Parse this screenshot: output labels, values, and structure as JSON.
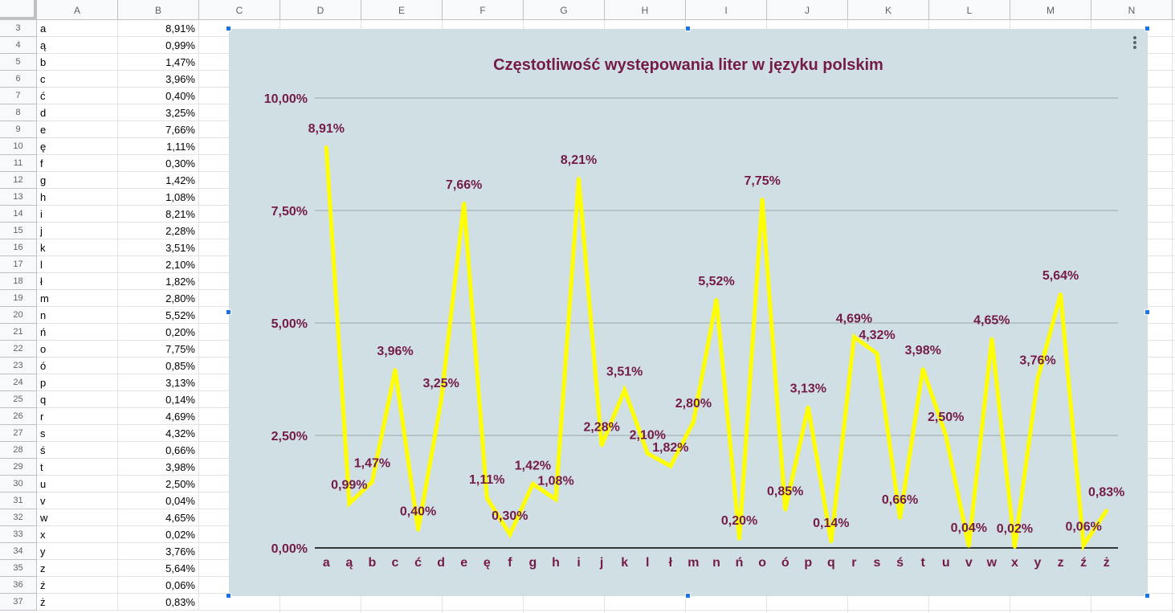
{
  "columns": [
    "A",
    "B",
    "C",
    "D",
    "E",
    "F",
    "G",
    "H",
    "I",
    "J",
    "K",
    "L",
    "M",
    "N"
  ],
  "rows": [
    {
      "num": "3",
      "letter": "a",
      "value": "8,91%"
    },
    {
      "num": "4",
      "letter": "ą",
      "value": "0,99%"
    },
    {
      "num": "5",
      "letter": "b",
      "value": "1,47%"
    },
    {
      "num": "6",
      "letter": "c",
      "value": "3,96%"
    },
    {
      "num": "7",
      "letter": "ć",
      "value": "0,40%"
    },
    {
      "num": "8",
      "letter": "d",
      "value": "3,25%"
    },
    {
      "num": "9",
      "letter": "e",
      "value": "7,66%"
    },
    {
      "num": "10",
      "letter": "ę",
      "value": "1,11%"
    },
    {
      "num": "11",
      "letter": "f",
      "value": "0,30%"
    },
    {
      "num": "12",
      "letter": "g",
      "value": "1,42%"
    },
    {
      "num": "13",
      "letter": "h",
      "value": "1,08%"
    },
    {
      "num": "14",
      "letter": "i",
      "value": "8,21%"
    },
    {
      "num": "15",
      "letter": "j",
      "value": "2,28%"
    },
    {
      "num": "16",
      "letter": "k",
      "value": "3,51%"
    },
    {
      "num": "17",
      "letter": "l",
      "value": "2,10%"
    },
    {
      "num": "18",
      "letter": "ł",
      "value": "1,82%"
    },
    {
      "num": "19",
      "letter": "m",
      "value": "2,80%"
    },
    {
      "num": "20",
      "letter": "n",
      "value": "5,52%"
    },
    {
      "num": "21",
      "letter": "ń",
      "value": "0,20%"
    },
    {
      "num": "22",
      "letter": "o",
      "value": "7,75%"
    },
    {
      "num": "23",
      "letter": "ó",
      "value": "0,85%"
    },
    {
      "num": "24",
      "letter": "p",
      "value": "3,13%"
    },
    {
      "num": "25",
      "letter": "q",
      "value": "0,14%"
    },
    {
      "num": "26",
      "letter": "r",
      "value": "4,69%"
    },
    {
      "num": "27",
      "letter": "s",
      "value": "4,32%"
    },
    {
      "num": "28",
      "letter": "ś",
      "value": "0,66%"
    },
    {
      "num": "29",
      "letter": "t",
      "value": "3,98%"
    },
    {
      "num": "30",
      "letter": "u",
      "value": "2,50%"
    },
    {
      "num": "31",
      "letter": "v",
      "value": "0,04%"
    },
    {
      "num": "32",
      "letter": "w",
      "value": "4,65%"
    },
    {
      "num": "33",
      "letter": "x",
      "value": "0,02%"
    },
    {
      "num": "34",
      "letter": "y",
      "value": "3,76%"
    },
    {
      "num": "35",
      "letter": "z",
      "value": "5,64%"
    },
    {
      "num": "36",
      "letter": "ź",
      "value": "0,06%"
    },
    {
      "num": "37",
      "letter": "ż",
      "value": "0,83%"
    }
  ],
  "chart_data": {
    "type": "line",
    "title": "Częstotliwość występowania liter w języku polskim",
    "xlabel": "",
    "ylabel": "",
    "categories": [
      "a",
      "ą",
      "b",
      "c",
      "ć",
      "d",
      "e",
      "ę",
      "f",
      "g",
      "h",
      "i",
      "j",
      "k",
      "l",
      "ł",
      "m",
      "n",
      "ń",
      "o",
      "ó",
      "p",
      "q",
      "r",
      "s",
      "ś",
      "t",
      "u",
      "v",
      "w",
      "x",
      "y",
      "z",
      "ź",
      "ż"
    ],
    "values": [
      8.91,
      0.99,
      1.47,
      3.96,
      0.4,
      3.25,
      7.66,
      1.11,
      0.3,
      1.42,
      1.08,
      8.21,
      2.28,
      3.51,
      2.1,
      1.82,
      2.8,
      5.52,
      0.2,
      7.75,
      0.85,
      3.13,
      0.14,
      4.69,
      4.32,
      0.66,
      3.98,
      2.5,
      0.04,
      4.65,
      0.02,
      3.76,
      5.64,
      0.06,
      0.83
    ],
    "data_labels": [
      "8,91%",
      "0,99%",
      "1,47%",
      "3,96%",
      "0,40%",
      "3,25%",
      "7,66%",
      "1,11%",
      "0,30%",
      "1,42%",
      "1,08%",
      "8,21%",
      "2,28%",
      "3,51%",
      "2,10%",
      "1,82%",
      "2,80%",
      "5,52%",
      "0,20%",
      "7,75%",
      "0,85%",
      "3,13%",
      "0,14%",
      "4,69%",
      "4,32%",
      "0,66%",
      "3,98%",
      "2,50%",
      "0,04%",
      "4,65%",
      "0,02%",
      "3,76%",
      "5,64%",
      "0,06%",
      "0,83%"
    ],
    "ylim": [
      0,
      10
    ],
    "yticks": [
      0,
      2.5,
      5,
      7.5,
      10
    ],
    "ytick_labels": [
      "0,00%",
      "2,50%",
      "5,00%",
      "7,50%",
      "10,00%"
    ],
    "grid": true,
    "legend": "none",
    "colors": {
      "line": "#ffff00",
      "text": "#741b47",
      "background": "#d0dfe3",
      "grid": "#9aa4a8",
      "axis": "#000000"
    }
  }
}
